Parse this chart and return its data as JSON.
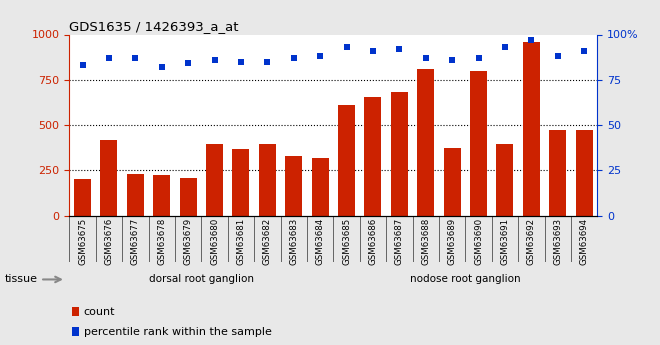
{
  "title": "GDS1635 / 1426393_a_at",
  "categories": [
    "GSM63675",
    "GSM63676",
    "GSM63677",
    "GSM63678",
    "GSM63679",
    "GSM63680",
    "GSM63681",
    "GSM63682",
    "GSM63683",
    "GSM63684",
    "GSM63685",
    "GSM63686",
    "GSM63687",
    "GSM63688",
    "GSM63689",
    "GSM63690",
    "GSM63691",
    "GSM63692",
    "GSM63693",
    "GSM63694"
  ],
  "bar_values": [
    200,
    415,
    230,
    225,
    205,
    395,
    370,
    395,
    330,
    320,
    610,
    655,
    680,
    810,
    375,
    800,
    395,
    960,
    475,
    475
  ],
  "dot_values": [
    83,
    87,
    87,
    82,
    84,
    86,
    85,
    85,
    87,
    88,
    93,
    91,
    92,
    87,
    86,
    87,
    93,
    97,
    88,
    91
  ],
  "bar_color": "#cc2200",
  "dot_color": "#0033cc",
  "ylim_left": [
    0,
    1000
  ],
  "ylim_right": [
    0,
    100
  ],
  "yticks_left": [
    0,
    250,
    500,
    750,
    1000
  ],
  "yticks_right": [
    0,
    25,
    50,
    75,
    100
  ],
  "grid_values": [
    250,
    500,
    750
  ],
  "tissue_groups": [
    {
      "label": "dorsal root ganglion",
      "start": 0,
      "end": 9,
      "color": "#ccffcc"
    },
    {
      "label": "nodose root ganglion",
      "start": 10,
      "end": 19,
      "color": "#44dd44"
    }
  ],
  "tissue_label": "tissue",
  "arrow_color": "#888888",
  "legend_bar": "count",
  "legend_dot": "percentile rank within the sample",
  "fig_bg_color": "#e8e8e8",
  "plot_bg_color": "#ffffff",
  "xtick_bg": "#cccccc"
}
